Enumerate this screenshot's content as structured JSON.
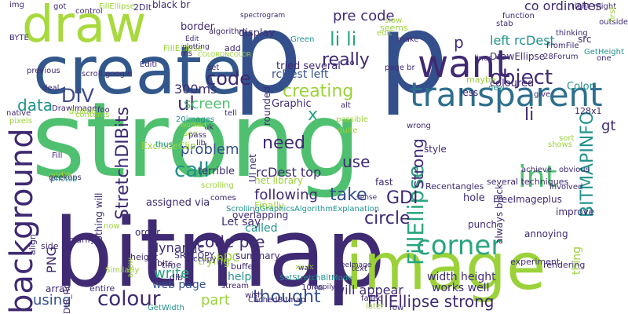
{
  "words": [
    {
      "text": "strong",
      "color": "#4fc06f"
    },
    {
      "text": "bitmap",
      "color": "#3f2a73"
    },
    {
      "text": "p",
      "color": "#34508c"
    },
    {
      "text": "p",
      "color": "#34508c"
    },
    {
      "text": "image",
      "color": "#9bd23a"
    },
    {
      "text": "create",
      "color": "#32578b"
    },
    {
      "text": "draw",
      "color": "#a8d93d"
    },
    {
      "text": "transparent",
      "color": "#2e6e8e"
    },
    {
      "text": "background",
      "color": "#3f2a73"
    },
    {
      "text": "corner",
      "color": "#2aa57f"
    },
    {
      "text": "want",
      "color": "#3f2a73"
    },
    {
      "text": "object",
      "color": "#3f2a73"
    },
    {
      "text": "FillEllipse",
      "color": "#2aa57f"
    },
    {
      "text": "colour",
      "color": "#3f2a73"
    },
    {
      "text": "BITMAPINFO",
      "color": "#21928c"
    },
    {
      "text": "StretchDIBits",
      "color": "#3f2a73"
    },
    {
      "text": "li li",
      "color": "#2aa57f"
    },
    {
      "text": "really",
      "color": "#3f2a73"
    },
    {
      "text": "DIV",
      "color": "#3b4a86"
    },
    {
      "text": "call",
      "color": "#21928c"
    },
    {
      "text": "code",
      "color": "#3f2a73"
    },
    {
      "text": "need",
      "color": "#3f2a73"
    },
    {
      "text": "thought",
      "color": "#34508c"
    },
    {
      "text": "int",
      "color": "#4fc06f"
    },
    {
      "text": "creating",
      "color": "#9bd23a"
    },
    {
      "text": "p",
      "color": "#3f2a73"
    },
    {
      "text": "circle",
      "color": "#3f2a73"
    },
    {
      "text": "take",
      "color": "#34508c"
    },
    {
      "text": "FillEllipse strong",
      "color": "#3f2a73"
    },
    {
      "text": "code pre",
      "color": "#3f2a73"
    },
    {
      "text": "li",
      "color": "#3f2a73"
    },
    {
      "text": "strong",
      "color": "#3f2a73"
    },
    {
      "text": "x",
      "color": "#2aa57f"
    },
    {
      "text": "GDI",
      "color": "#3f2a73"
    },
    {
      "text": "data",
      "color": "#21928c"
    },
    {
      "text": "ul",
      "color": "#3f2a73"
    },
    {
      "text": "pre code",
      "color": "#3f2a73"
    },
    {
      "text": "screen",
      "color": "#4fc06f"
    },
    {
      "text": "problem",
      "color": "#34508c"
    },
    {
      "text": "300ms",
      "color": "#3f2a73"
    },
    {
      "text": "use",
      "color": "#3f2a73"
    },
    {
      "text": "part",
      "color": "#9bd23a"
    },
    {
      "text": "using",
      "color": "#34508c"
    },
    {
      "text": "write",
      "color": "#2aa57f"
    },
    {
      "text": "following",
      "color": "#3f2a73"
    },
    {
      "text": "gt",
      "color": "#3f2a73"
    },
    {
      "text": "co ordinates",
      "color": "#3f2a73"
    },
    {
      "text": "left rcDest",
      "color": "#21928c"
    },
    {
      "text": "rcDest left",
      "color": "#34508c"
    },
    {
      "text": "rcDest top",
      "color": "#3f2a73"
    },
    {
      "text": "width height",
      "color": "#3f2a73"
    },
    {
      "text": "works well",
      "color": "#3f2a73"
    },
    {
      "text": "will appear",
      "color": "#3f2a73"
    },
    {
      "text": "PNG",
      "color": "#3f2a73"
    },
    {
      "text": "trying",
      "color": "#9bd23a"
    },
    {
      "text": "dynamic",
      "color": "#3f2a73"
    },
    {
      "text": "hDC",
      "color": "#9bd23a"
    },
    {
      "text": "web page",
      "color": "#34508c"
    },
    {
      "text": "help",
      "color": "#21928c"
    },
    {
      "text": "thing",
      "color": "#9bd23a"
    },
    {
      "text": "called",
      "color": "#21928c"
    },
    {
      "text": "DrawEllipse",
      "color": "#3f2a73"
    },
    {
      "text": "Color",
      "color": "#21928c"
    },
    {
      "text": "coloured",
      "color": "#3f2a73"
    },
    {
      "text": "Graphic",
      "color": "#3f2a73"
    },
    {
      "text": "tried several",
      "color": "#3f2a73"
    },
    {
      "text": "Let say",
      "color": "#3f2a73"
    },
    {
      "text": "rounded",
      "color": "#3f2a73"
    },
    {
      "text": "display",
      "color": "#3f2a73"
    },
    {
      "text": "border",
      "color": "#3f2a73"
    },
    {
      "text": "FillEllipse",
      "color": "#9bd23a"
    },
    {
      "text": "black br",
      "color": "#3f2a73"
    },
    {
      "text": "ExcludeClip",
      "color": "#9bd23a"
    },
    {
      "text": "terrible",
      "color": "#3f2a73"
    },
    {
      "text": "nothing will",
      "color": "#3f2a73"
    },
    {
      "text": "assigned via",
      "color": "#3f2a73"
    },
    {
      "text": "UI net",
      "color": "#3f2a73"
    },
    {
      "text": "net library",
      "color": "#9bd23a"
    },
    {
      "text": "overlapping",
      "color": "#3f2a73"
    },
    {
      "text": "Finally",
      "color": "#9bd23a"
    },
    {
      "text": "summary",
      "color": "#3f2a73"
    },
    {
      "text": "punch",
      "color": "#3f2a73"
    },
    {
      "text": "Recentangles",
      "color": "#3f2a73"
    },
    {
      "text": "hole",
      "color": "#3f2a73"
    },
    {
      "text": "style",
      "color": "#3f2a73"
    },
    {
      "text": "less",
      "color": "#3f2a73"
    },
    {
      "text": "fast",
      "color": "#3f2a73"
    },
    {
      "text": "always black",
      "color": "#3f2a73"
    },
    {
      "text": "FreeImageplus",
      "color": "#3f2a73"
    },
    {
      "text": "several techniques",
      "color": "#3f2a73"
    },
    {
      "text": "improve",
      "color": "#3f2a73"
    },
    {
      "text": "annoying",
      "color": "#3f2a73"
    },
    {
      "text": "rendering",
      "color": "#3f2a73"
    },
    {
      "text": "experiment",
      "color": "#3f2a73"
    },
    {
      "text": "SRCCOPY",
      "color": "#3f2a73"
    },
    {
      "text": "order",
      "color": "#3f2a73"
    },
    {
      "text": "align",
      "color": "#3f2a73"
    },
    {
      "text": "side",
      "color": "#3f2a73"
    },
    {
      "text": "clarify",
      "color": "#3f2a73"
    },
    {
      "text": "array",
      "color": "#3f2a73"
    },
    {
      "text": "DIB_RGB_COLORS",
      "color": "#3f2a73"
    },
    {
      "text": "height",
      "color": "#3f2a73"
    },
    {
      "text": "bits",
      "color": "#3f2a73"
    },
    {
      "text": "time",
      "color": "#3f2a73"
    },
    {
      "text": "dib",
      "color": "#3f2a73"
    },
    {
      "text": "buffer",
      "color": "#3f2a73"
    },
    {
      "text": "occupy",
      "color": "#3f2a73"
    },
    {
      "text": "GetWidth",
      "color": "#21928c"
    },
    {
      "text": "entire",
      "color": "#3f2a73"
    },
    {
      "text": "Similarly",
      "color": "#9bd23a"
    },
    {
      "text": "now",
      "color": "#9bd23a"
    },
    {
      "text": "allow",
      "color": "#9bd23a"
    },
    {
      "text": "stream",
      "color": "#3f2a73"
    },
    {
      "text": "wish",
      "color": "#3f2a73"
    },
    {
      "text": "CachedBitmap",
      "color": "#3f2a73"
    },
    {
      "text": "SetStretchBltMode",
      "color": "#21928c"
    },
    {
      "text": "xxxx",
      "color": "#9bd23a"
    },
    {
      "text": "10ms",
      "color": "#3f2a73"
    },
    {
      "text": "row",
      "color": "#3f2a73"
    },
    {
      "text": "later",
      "color": "#9bd23a"
    },
    {
      "text": "failed",
      "color": "#3f2a73"
    },
    {
      "text": "happily",
      "color": "#3f2a73"
    },
    {
      "text": "FreeImage",
      "color": "#3f2a73"
    },
    {
      "text": "DrawImage",
      "color": "#3f2a73"
    },
    {
      "text": "native",
      "color": "#3f2a73"
    },
    {
      "text": "contents",
      "color": "#9bd23a"
    },
    {
      "text": "dibinfo",
      "color": "#9bd23a"
    },
    {
      "text": "Fill",
      "color": "#3f2a73"
    },
    {
      "text": "width",
      "color": "#9bd23a"
    },
    {
      "text": "geekops",
      "color": "#3f2a73"
    },
    {
      "text": "photos",
      "color": "#21928c"
    },
    {
      "text": "pixels",
      "color": "#9bd23a"
    },
    {
      "text": "deal",
      "color": "#3f2a73"
    },
    {
      "text": "previous",
      "color": "#3f2a73"
    },
    {
      "text": "scroll",
      "color": "#3f2a73"
    },
    {
      "text": "foo",
      "color": "#3f2a73"
    },
    {
      "text": "google",
      "color": "#3f2a73"
    },
    {
      "text": "img",
      "color": "#3f2a73"
    },
    {
      "text": "BYTE",
      "color": "#3f2a73"
    },
    {
      "text": "got",
      "color": "#3f2a73"
    },
    {
      "text": "control",
      "color": "#3f2a73"
    },
    {
      "text": "FillEllipse",
      "color": "#9bd23a"
    },
    {
      "text": "2DIt",
      "color": "#3f2a73"
    },
    {
      "text": "spectrogram",
      "color": "#3f2a73"
    },
    {
      "text": "algorithm",
      "color": "#3f2a73"
    },
    {
      "text": "Green",
      "color": "#21928c"
    },
    {
      "text": "add",
      "color": "#3f2a73"
    },
    {
      "text": "ms",
      "color": "#3f2a73"
    },
    {
      "text": "set",
      "color": "#3f2a73"
    },
    {
      "text": "Editl",
      "color": "#3f2a73"
    },
    {
      "text": "Edit",
      "color": "#3f2a73"
    },
    {
      "text": "plotting",
      "color": "#3f2a73"
    },
    {
      "text": "COLORONCOLOR",
      "color": "#9bd23a"
    },
    {
      "text": "slow",
      "color": "#9bd23a"
    },
    {
      "text": "seems",
      "color": "#9bd23a"
    },
    {
      "text": "edit",
      "color": "#9bd23a"
    },
    {
      "text": "co",
      "color": "#3f2a73"
    },
    {
      "text": "make",
      "color": "#3f2a73"
    },
    {
      "text": "page br",
      "color": "#3f2a73"
    },
    {
      "text": "lines",
      "color": "#3f2a73"
    },
    {
      "text": "maybe",
      "color": "#9bd23a"
    },
    {
      "text": "new",
      "color": "#21928c"
    },
    {
      "text": "give",
      "color": "#3f2a73"
    },
    {
      "text": "function",
      "color": "#3f2a73"
    },
    {
      "text": "stab",
      "color": "#3f2a73"
    },
    {
      "text": "thinking",
      "color": "#3f2a73"
    },
    {
      "text": "FromFile",
      "color": "#3f2a73"
    },
    {
      "text": "28Forum",
      "color": "#3f2a73"
    },
    {
      "text": "right",
      "color": "#3f2a73"
    },
    {
      "text": "might",
      "color": "#3f2a73"
    },
    {
      "text": "outside",
      "color": "#3f2a73"
    },
    {
      "text": "first",
      "color": "#9bd23a"
    },
    {
      "text": "src",
      "color": "#3f2a73"
    },
    {
      "text": "GetHeight",
      "color": "#21928c"
    },
    {
      "text": "one",
      "color": "#3f2a73"
    },
    {
      "text": "128x1",
      "color": "#3f2a73"
    },
    {
      "text": "sort",
      "color": "#9bd23a"
    },
    {
      "text": "shows",
      "color": "#9bd23a"
    },
    {
      "text": "obvious",
      "color": "#3f2a73"
    },
    {
      "text": "involved",
      "color": "#3f2a73"
    },
    {
      "text": "achieve",
      "color": "#3f2a73"
    },
    {
      "text": "wrong",
      "color": "#3f2a73"
    },
    {
      "text": "quite",
      "color": "#9bd23a"
    },
    {
      "text": "possible",
      "color": "#9bd23a"
    },
    {
      "text": "alt",
      "color": "#3f2a73"
    },
    {
      "text": "lib",
      "color": "#3f2a73"
    },
    {
      "text": "tell",
      "color": "#3f2a73"
    },
    {
      "text": "uk",
      "color": "#3f2a73"
    },
    {
      "text": "see",
      "color": "#9bd23a"
    },
    {
      "text": "pass",
      "color": "#3f2a73"
    },
    {
      "text": "20images",
      "color": "#21928c"
    },
    {
      "text": "thus",
      "color": "#21928c"
    },
    {
      "text": "worked",
      "color": "#9bd23a"
    },
    {
      "text": "scrolling",
      "color": "#9bd23a"
    },
    {
      "text": "comes",
      "color": "#3f2a73"
    },
    {
      "text": "ScrollingGraphicsAlgorithmExplanation",
      "color": "#21928c"
    },
    {
      "text": "sense",
      "color": "#3f2a73"
    },
    {
      "text": "text",
      "color": "#3f2a73"
    },
    {
      "text": "way",
      "color": "#3f2a73"
    }
  ]
}
